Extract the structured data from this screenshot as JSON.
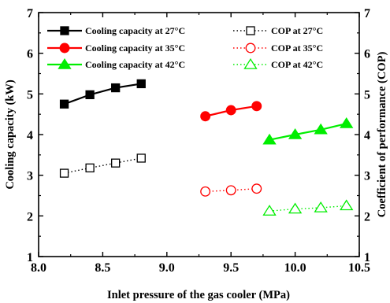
{
  "chart_data": {
    "type": "line",
    "title": "",
    "xlabel": "Inlet pressure of the gas cooler (MPa)",
    "ylabel_left": "Cooling capacity (kW)",
    "ylabel_right": "Coefficient of performance (COP)",
    "xlim": [
      8.0,
      10.5
    ],
    "ylim_left": [
      1,
      7
    ],
    "ylim_right": [
      1,
      7
    ],
    "x_ticks": [
      "8.0",
      "8.5",
      "9.0",
      "9.5",
      "10.0",
      "10.5"
    ],
    "y_ticks_left": [
      "1",
      "2",
      "3",
      "4",
      "5",
      "6",
      "7"
    ],
    "y_ticks_right": [
      "1",
      "2",
      "3",
      "4",
      "5",
      "6",
      "7"
    ],
    "grid": false,
    "legend_placement": "top",
    "series": [
      {
        "name": "Cooling capacity at 27°C",
        "axis": "left",
        "color": "#000000",
        "marker": "square",
        "filled": true,
        "line": "solid",
        "x": [
          8.2,
          8.4,
          8.6,
          8.8
        ],
        "values": [
          4.75,
          4.98,
          5.15,
          5.25
        ]
      },
      {
        "name": "Cooling capacity at 35°C",
        "axis": "left",
        "color": "#ff0000",
        "marker": "circle",
        "filled": true,
        "line": "solid",
        "x": [
          9.3,
          9.5,
          9.7
        ],
        "values": [
          4.45,
          4.6,
          4.7
        ]
      },
      {
        "name": "Cooling capacity at 42°C",
        "axis": "left",
        "color": "#00ee00",
        "marker": "triangle",
        "filled": true,
        "line": "solid",
        "x": [
          9.8,
          10.0,
          10.2,
          10.4
        ],
        "values": [
          3.87,
          4.0,
          4.12,
          4.27
        ]
      },
      {
        "name": "COP at 27°C",
        "axis": "right",
        "color": "#000000",
        "marker": "square",
        "filled": false,
        "line": "dotted",
        "x": [
          8.2,
          8.4,
          8.6,
          8.8
        ],
        "values": [
          3.05,
          3.18,
          3.3,
          3.42
        ]
      },
      {
        "name": "COP at 35°C",
        "axis": "right",
        "color": "#ff0000",
        "marker": "circle",
        "filled": false,
        "line": "dotted",
        "x": [
          9.3,
          9.5,
          9.7
        ],
        "values": [
          2.6,
          2.63,
          2.67
        ]
      },
      {
        "name": "COP at 42°C",
        "axis": "right",
        "color": "#00ee00",
        "marker": "triangle",
        "filled": false,
        "line": "dotted",
        "x": [
          9.8,
          10.0,
          10.2,
          10.4
        ],
        "values": [
          2.12,
          2.17,
          2.2,
          2.25
        ]
      }
    ]
  }
}
